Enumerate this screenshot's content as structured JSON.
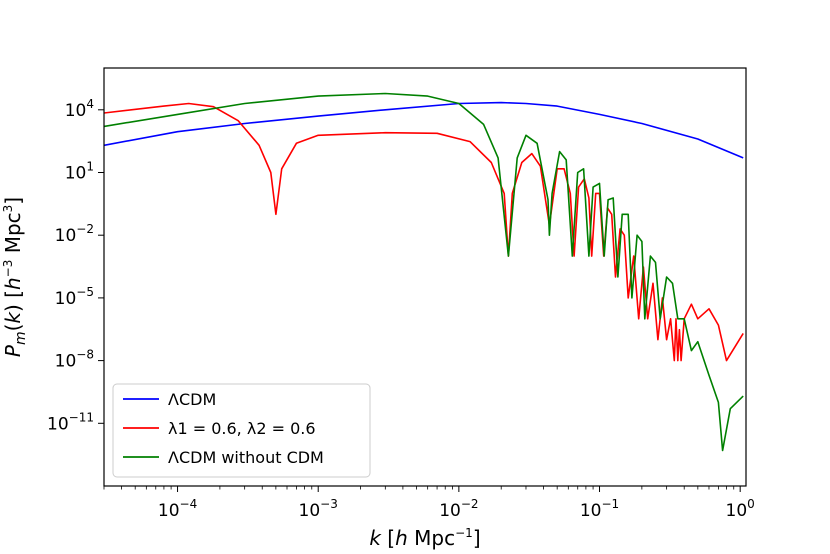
{
  "chart_data": {
    "type": "line",
    "x_scale": "log",
    "y_scale": "log",
    "xlim": [
      3e-05,
      1.1
    ],
    "ylim": [
      1e-14,
      1000000.0
    ],
    "x_ticks": [
      {
        "value": 0.0001,
        "base": "10",
        "exp": "−4"
      },
      {
        "value": 0.001,
        "base": "10",
        "exp": "−3"
      },
      {
        "value": 0.01,
        "base": "10",
        "exp": "−2"
      },
      {
        "value": 0.1,
        "base": "10",
        "exp": "−1"
      },
      {
        "value": 1,
        "base": "10",
        "exp": "0"
      }
    ],
    "y_ticks": [
      {
        "value": 1e-11,
        "base": "10",
        "exp": "−11"
      },
      {
        "value": 1e-08,
        "base": "10",
        "exp": "−8"
      },
      {
        "value": 1e-05,
        "base": "10",
        "exp": "−5"
      },
      {
        "value": 0.01,
        "base": "10",
        "exp": "−2"
      },
      {
        "value": 10,
        "base": "10",
        "exp": "1"
      },
      {
        "value": 10000,
        "base": "10",
        "exp": "4"
      }
    ],
    "xlabel": "k [h Mpc−1]",
    "ylabel": "Pm(k) [h−3 Mpc3]",
    "legend_position": "lower-left",
    "series": [
      {
        "name": "ΛCDM",
        "color": "#0000ff",
        "points": [
          [
            3e-05,
            200
          ],
          [
            0.0001,
            900
          ],
          [
            0.0003,
            2200
          ],
          [
            0.001,
            5000
          ],
          [
            0.003,
            10000
          ],
          [
            0.01,
            20000
          ],
          [
            0.02,
            22000
          ],
          [
            0.03,
            20000
          ],
          [
            0.05,
            15000
          ],
          [
            0.1,
            6000
          ],
          [
            0.2,
            2200
          ],
          [
            0.5,
            400
          ],
          [
            1.05,
            50
          ]
        ]
      },
      {
        "name": "λ1 = 0.6, λ2 = 0.6",
        "color": "#ff0000",
        "points": [
          [
            3e-05,
            7000
          ],
          [
            8e-05,
            15000
          ],
          [
            0.00012,
            20000
          ],
          [
            0.00018,
            14000
          ],
          [
            0.00027,
            3000
          ],
          [
            0.00038,
            200
          ],
          [
            0.00046,
            10
          ],
          [
            0.0005,
            0.1
          ],
          [
            0.00055,
            15
          ],
          [
            0.0007,
            250
          ],
          [
            0.001,
            600
          ],
          [
            0.003,
            800
          ],
          [
            0.007,
            750
          ],
          [
            0.012,
            300
          ],
          [
            0.017,
            30
          ],
          [
            0.021,
            1
          ],
          [
            0.0225,
            0.001
          ],
          [
            0.024,
            1
          ],
          [
            0.028,
            30
          ],
          [
            0.033,
            80
          ],
          [
            0.038,
            20
          ],
          [
            0.044,
            0.03
          ],
          [
            0.05,
            15
          ],
          [
            0.056,
            15
          ],
          [
            0.062,
            1
          ],
          [
            0.066,
            0.001
          ],
          [
            0.071,
            2
          ],
          [
            0.078,
            5
          ],
          [
            0.084,
            0.6
          ],
          [
            0.088,
            0.001
          ],
          [
            0.094,
            1
          ],
          [
            0.1,
            1
          ],
          [
            0.107,
            0.001
          ],
          [
            0.114,
            0.2
          ],
          [
            0.122,
            0.1
          ],
          [
            0.13,
            0.0001
          ],
          [
            0.14,
            0.02
          ],
          [
            0.15,
            0.01
          ],
          [
            0.16,
            1e-05
          ],
          [
            0.175,
            0.001
          ],
          [
            0.19,
            1e-06
          ],
          [
            0.205,
            0.0003
          ],
          [
            0.22,
            1e-06
          ],
          [
            0.24,
            5e-05
          ],
          [
            0.26,
            1e-07
          ],
          [
            0.28,
            1e-05
          ],
          [
            0.3,
            1e-07
          ],
          [
            0.32,
            1e-06
          ],
          [
            0.34,
            1e-08
          ],
          [
            0.35,
            1e-06
          ],
          [
            0.36,
            1e-08
          ],
          [
            0.37,
            3e-07
          ],
          [
            0.38,
            1e-08
          ],
          [
            0.4,
            1e-06
          ],
          [
            0.45,
            5e-06
          ],
          [
            0.5,
            1e-06
          ],
          [
            0.6,
            3e-06
          ],
          [
            0.7,
            5e-07
          ],
          [
            0.8,
            1e-08
          ],
          [
            1.05,
            2e-07
          ]
        ]
      },
      {
        "name": "ΛCDM without CDM",
        "color": "#008000",
        "points": [
          [
            3e-05,
            1600
          ],
          [
            0.0001,
            6000
          ],
          [
            0.0003,
            20000
          ],
          [
            0.001,
            45000
          ],
          [
            0.003,
            60000
          ],
          [
            0.006,
            45000
          ],
          [
            0.01,
            20000
          ],
          [
            0.015,
            2000
          ],
          [
            0.019,
            50
          ],
          [
            0.0225,
            0.001
          ],
          [
            0.026,
            50
          ],
          [
            0.03,
            600
          ],
          [
            0.036,
            250
          ],
          [
            0.043,
            0.5
          ],
          [
            0.044,
            0.01
          ],
          [
            0.046,
            1
          ],
          [
            0.052,
            100
          ],
          [
            0.058,
            40
          ],
          [
            0.064,
            0.001
          ],
          [
            0.07,
            10
          ],
          [
            0.077,
            15
          ],
          [
            0.084,
            0.001
          ],
          [
            0.09,
            2
          ],
          [
            0.1,
            3
          ],
          [
            0.108,
            0.001
          ],
          [
            0.115,
            0.5
          ],
          [
            0.125,
            0.6
          ],
          [
            0.135,
            0.0001
          ],
          [
            0.145,
            0.1
          ],
          [
            0.16,
            0.1
          ],
          [
            0.17,
            1e-05
          ],
          [
            0.185,
            0.01
          ],
          [
            0.2,
            0.005
          ],
          [
            0.21,
            1e-06
          ],
          [
            0.23,
            0.001
          ],
          [
            0.25,
            0.0005
          ],
          [
            0.27,
            1e-06
          ],
          [
            0.3,
            0.0001
          ],
          [
            0.33,
            5e-05
          ],
          [
            0.36,
            1e-06
          ],
          [
            0.4,
            1e-06
          ],
          [
            0.45,
            3e-08
          ],
          [
            0.5,
            8e-08
          ],
          [
            0.6,
            2e-09
          ],
          [
            0.7,
            1e-10
          ],
          [
            0.75,
            5e-13
          ],
          [
            0.85,
            5e-11
          ],
          [
            1.05,
            2e-10
          ]
        ]
      }
    ]
  }
}
